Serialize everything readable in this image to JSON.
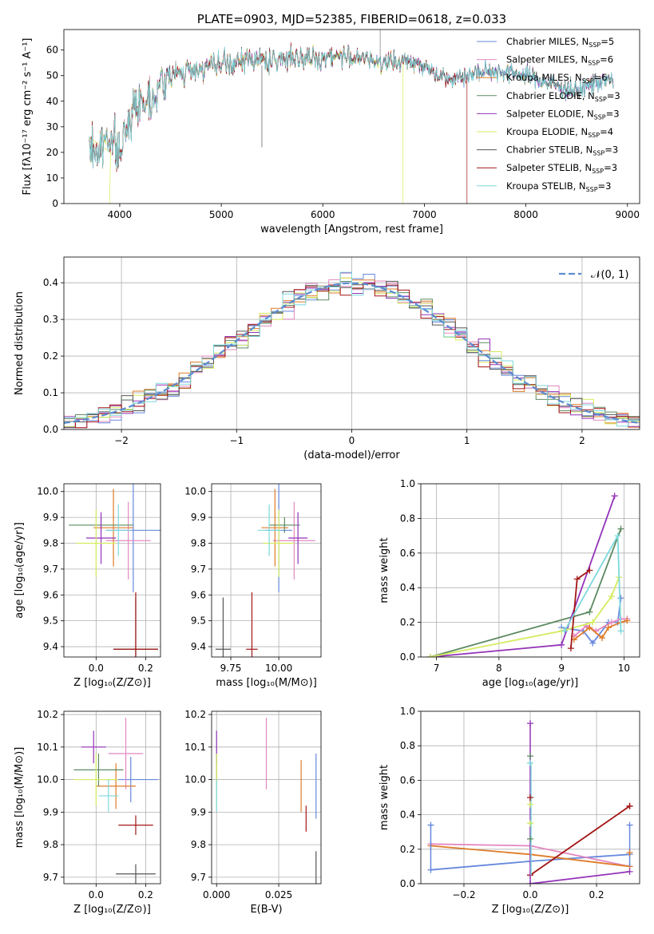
{
  "colors": {
    "Chabrier MILES": "#6689dd",
    "Salpeter MILES": "#e388c1",
    "Kroupa MILES": "#de7b28",
    "Chabrier ELODIE": "#5c8a62",
    "Salpeter ELODIE": "#9333b8",
    "Kroupa ELODIE": "#d4ec5e",
    "Chabrier STELIB": "#555555",
    "Salpeter STELIB": "#a31616",
    "Kroupa STELIB": "#7ed8dc",
    "gaussian": "#5b8bd0"
  },
  "chart_data": [
    {
      "id": "spectrum",
      "type": "line",
      "title": "PLATE=0903, MJD=52385, FIBERID=0618, z=0.033",
      "xlabel": "wavelength [Angstrom, rest frame]",
      "ylabel": "Flux [fλ10⁻¹⁷ erg cm⁻² s⁻¹ A⁻¹]",
      "xlim": [
        3450,
        9120
      ],
      "ylim": [
        0,
        68
      ],
      "xticks": [
        "4000",
        "5000",
        "6000",
        "7000",
        "8000",
        "9000"
      ],
      "yticks": [
        "0",
        "10",
        "20",
        "30",
        "40",
        "50",
        "60"
      ],
      "legend": [
        {
          "name": "Chabrier MILES",
          "nssp": "5"
        },
        {
          "name": "Salpeter MILES",
          "nssp": "6"
        },
        {
          "name": "Kroupa MILES",
          "nssp": "6"
        },
        {
          "name": "Chabrier ELODIE",
          "nssp": "3"
        },
        {
          "name": "Salpeter ELODIE",
          "nssp": "3"
        },
        {
          "name": "Kroupa ELODIE",
          "nssp": "4"
        },
        {
          "name": "Chabrier STELIB",
          "nssp": "3"
        },
        {
          "name": "Salpeter STELIB",
          "nssp": "3"
        },
        {
          "name": "Kroupa STELIB",
          "nssp": "3"
        }
      ],
      "legend_position": "upper right",
      "continuum": {
        "x": [
          3700,
          3800,
          3900,
          4000,
          4100,
          4200,
          4300,
          4400,
          4500,
          4700,
          4900,
          5100,
          5300,
          5500,
          5700,
          5900,
          6100,
          6300,
          6500,
          6700,
          6900,
          7100,
          7300,
          7500,
          7700,
          7900,
          8100,
          8300,
          8500,
          8700,
          8860
        ],
        "y": [
          22,
          20,
          28,
          18,
          35,
          40,
          41,
          46,
          50,
          52,
          54,
          54,
          57,
          55,
          58,
          56,
          58,
          57,
          56,
          55,
          56,
          51,
          49,
          51,
          52,
          51,
          49,
          46,
          44,
          48,
          48
        ]
      },
      "spectrum_range": [
        3700,
        8860
      ]
    },
    {
      "id": "residuals",
      "type": "histogram",
      "xlabel": "(data-model)/error",
      "ylabel": "Normed distribution",
      "xlim": [
        -2.5,
        2.5
      ],
      "ylim": [
        0,
        0.47
      ],
      "xticks": [
        "−2",
        "−1",
        "0",
        "1",
        "2"
      ],
      "yticks": [
        "0.0",
        "0.1",
        "0.2",
        "0.3",
        "0.4"
      ],
      "bin_width": 0.1,
      "legend": [
        "𝒩(0, 1)"
      ],
      "legend_position": "upper right",
      "grid": true
    },
    {
      "id": "age-vs-Z",
      "type": "scatter",
      "xlabel": "Z [log₁₀(Z/Z⊙)]",
      "ylabel": "age  [log₁₀(age/yr)]",
      "xlim": [
        -0.13,
        0.26
      ],
      "ylim": [
        9.36,
        10.03
      ],
      "xticks": [
        "0.0",
        "0.2"
      ],
      "yticks": [
        "9.4",
        "9.5",
        "9.6",
        "9.7",
        "9.8",
        "9.9",
        "10.0"
      ],
      "points": [
        {
          "series": "Chabrier MILES",
          "x": 0.15,
          "xerr": 0.11,
          "y": 9.85,
          "yerr": 0.24
        },
        {
          "series": "Salpeter MILES",
          "x": 0.13,
          "xerr": 0.09,
          "y": 9.81,
          "yerr": 0.15
        },
        {
          "series": "Kroupa MILES",
          "x": 0.07,
          "xerr": 0.08,
          "y": 9.86,
          "yerr": 0.15
        },
        {
          "series": "Chabrier ELODIE",
          "x": 0.02,
          "xerr": 0.13,
          "y": 9.87,
          "yerr": 0.03
        },
        {
          "series": "Salpeter ELODIE",
          "x": 0.02,
          "xerr": 0.06,
          "y": 9.82,
          "yerr": 0.1
        },
        {
          "series": "Kroupa ELODIE",
          "x": 0.0,
          "xerr": 0.08,
          "y": 9.8,
          "yerr": 0.13
        },
        {
          "series": "Chabrier STELIB",
          "x": 0.16,
          "xerr": 0.09,
          "y": 9.39,
          "yerr": 0.2
        },
        {
          "series": "Salpeter STELIB",
          "x": 0.16,
          "xerr": 0.09,
          "y": 9.39,
          "yerr": 0.22
        },
        {
          "series": "Kroupa STELIB",
          "x": 0.09,
          "xerr": 0.05,
          "y": 9.85,
          "yerr": 0.1
        }
      ]
    },
    {
      "id": "age-vs-mass",
      "type": "scatter",
      "xlabel": "mass [log₁₀(M/M⊙)]",
      "xlim": [
        9.65,
        10.22
      ],
      "ylim": [
        9.36,
        10.03
      ],
      "xticks": [
        "9.75",
        "10.00"
      ],
      "yticks": [
        "9.4",
        "9.5",
        "9.6",
        "9.7",
        "9.8",
        "9.9",
        "10.0"
      ],
      "points": [
        {
          "series": "Chabrier MILES",
          "x": 10.0,
          "xerr": 0.07,
          "y": 9.85,
          "yerr": 0.24
        },
        {
          "series": "Salpeter MILES",
          "x": 10.08,
          "xerr": 0.11,
          "y": 9.81,
          "yerr": 0.15
        },
        {
          "series": "Kroupa MILES",
          "x": 9.98,
          "xerr": 0.07,
          "y": 9.86,
          "yerr": 0.15
        },
        {
          "series": "Chabrier ELODIE",
          "x": 10.03,
          "xerr": 0.08,
          "y": 9.87,
          "yerr": 0.03
        },
        {
          "series": "Salpeter ELODIE",
          "x": 10.1,
          "xerr": 0.05,
          "y": 9.82,
          "yerr": 0.1
        },
        {
          "series": "Kroupa ELODIE",
          "x": 10.0,
          "xerr": 0.08,
          "y": 9.8,
          "yerr": 0.13
        },
        {
          "series": "Chabrier STELIB",
          "x": 9.71,
          "xerr": 0.04,
          "y": 9.39,
          "yerr": 0.2
        },
        {
          "series": "Salpeter STELIB",
          "x": 9.86,
          "xerr": 0.03,
          "y": 9.39,
          "yerr": 0.22
        },
        {
          "series": "Kroupa STELIB",
          "x": 9.95,
          "xerr": 0.06,
          "y": 9.85,
          "yerr": 0.1
        }
      ]
    },
    {
      "id": "massweight-vs-age",
      "type": "line",
      "xlabel": "age  [log₁₀(age/yr)]",
      "ylabel": "mass weight",
      "xlim": [
        6.75,
        10.25
      ],
      "ylim": [
        0,
        1
      ],
      "xticks": [
        "7",
        "8",
        "9",
        "10"
      ],
      "yticks": [
        "0.0",
        "0.2",
        "0.4",
        "0.6",
        "0.8",
        "1.0"
      ],
      "series": [
        {
          "name": "Chabrier MILES",
          "x": [
            9.0,
            9.35,
            9.5,
            9.75,
            9.9,
            9.95
          ],
          "y": [
            0.17,
            0.15,
            0.08,
            0.2,
            0.2,
            0.34
          ]
        },
        {
          "name": "Salpeter MILES",
          "x": [
            9.2,
            9.4,
            9.55,
            9.8,
            9.95,
            10.05
          ],
          "y": [
            0.12,
            0.18,
            0.15,
            0.2,
            0.22,
            0.22
          ]
        },
        {
          "name": "Kroupa MILES",
          "x": [
            9.2,
            9.45,
            9.65,
            9.75,
            9.95,
            10.05
          ],
          "y": [
            0.1,
            0.17,
            0.11,
            0.17,
            0.2,
            0.21
          ]
        },
        {
          "name": "Chabrier ELODIE",
          "x": [
            6.9,
            9.45,
            9.95
          ],
          "y": [
            0.0,
            0.26,
            0.74
          ]
        },
        {
          "name": "Salpeter ELODIE",
          "x": [
            6.9,
            9.0,
            9.85
          ],
          "y": [
            0.0,
            0.07,
            0.93
          ]
        },
        {
          "name": "Kroupa ELODIE",
          "x": [
            6.9,
            9.0,
            9.5,
            9.8,
            9.92
          ],
          "y": [
            0.0,
            0.15,
            0.2,
            0.35,
            0.46
          ]
        },
        {
          "name": "Salpeter STELIB",
          "x": [
            9.15,
            9.25,
            9.45
          ],
          "y": [
            0.05,
            0.45,
            0.5
          ]
        },
        {
          "name": "Kroupa STELIB",
          "x": [
            9.05,
            9.9,
            9.95
          ],
          "y": [
            0.15,
            0.7,
            0.15
          ]
        }
      ]
    },
    {
      "id": "mass-vs-Z",
      "type": "scatter",
      "xlabel": "Z [log₁₀(Z/Z⊙)]",
      "ylabel": "mass [log₁₀(M/M⊙)]",
      "xlim": [
        -0.13,
        0.26
      ],
      "ylim": [
        9.68,
        10.21
      ],
      "xticks": [
        "0.0",
        "0.2"
      ],
      "yticks": [
        "9.7",
        "9.8",
        "9.9",
        "10.0",
        "10.1",
        "10.2"
      ],
      "points": [
        {
          "series": "Chabrier MILES",
          "x": 0.14,
          "xerr": 0.11,
          "y": 10.0,
          "yerr": 0.07
        },
        {
          "series": "Salpeter MILES",
          "x": 0.12,
          "xerr": 0.07,
          "y": 10.08,
          "yerr": 0.11
        },
        {
          "series": "Kroupa MILES",
          "x": 0.08,
          "xerr": 0.08,
          "y": 9.98,
          "yerr": 0.07
        },
        {
          "series": "Chabrier ELODIE",
          "x": 0.01,
          "xerr": 0.1,
          "y": 10.03,
          "yerr": 0.05
        },
        {
          "series": "Salpeter ELODIE",
          "x": -0.01,
          "xerr": 0.05,
          "y": 10.1,
          "yerr": 0.05
        },
        {
          "series": "Kroupa ELODIE",
          "x": 0.0,
          "xerr": 0.09,
          "y": 10.0,
          "yerr": 0.08
        },
        {
          "series": "Chabrier STELIB",
          "x": 0.16,
          "xerr": 0.08,
          "y": 9.71,
          "yerr": 0.03
        },
        {
          "series": "Salpeter STELIB",
          "x": 0.16,
          "xerr": 0.07,
          "y": 9.86,
          "yerr": 0.03
        },
        {
          "series": "Kroupa STELIB",
          "x": 0.05,
          "xerr": 0.04,
          "y": 9.95,
          "yerr": 0.05
        }
      ]
    },
    {
      "id": "mass-vs-EBV",
      "type": "scatter",
      "xlabel": "E(B-V)",
      "xlim": [
        -0.002,
        0.042
      ],
      "ylim": [
        9.68,
        10.21
      ],
      "xticks": [
        "0.000",
        "0.025"
      ],
      "yticks": [
        "9.7",
        "9.8",
        "9.9",
        "10.0",
        "10.1",
        "10.2"
      ],
      "points": [
        {
          "series": "Chabrier MILES",
          "x": 0.04,
          "xerr": 0.0,
          "y": 9.98,
          "yerr": 0.1
        },
        {
          "series": "Salpeter MILES",
          "x": 0.02,
          "xerr": 0.0,
          "y": 10.08,
          "yerr": 0.11
        },
        {
          "series": "Kroupa MILES",
          "x": 0.034,
          "xerr": 0.0,
          "y": 9.98,
          "yerr": 0.08
        },
        {
          "series": "Chabrier ELODIE",
          "x": 0.0,
          "xerr": 0.0,
          "y": 10.03,
          "yerr": 0.05
        },
        {
          "series": "Salpeter ELODIE",
          "x": 0.0,
          "xerr": 0.0,
          "y": 10.1,
          "yerr": 0.05
        },
        {
          "series": "Kroupa ELODIE",
          "x": 0.0,
          "xerr": 0.0,
          "y": 10.0,
          "yerr": 0.08
        },
        {
          "series": "Chabrier STELIB",
          "x": 0.04,
          "xerr": 0.0,
          "y": 9.73,
          "yerr": 0.05
        },
        {
          "series": "Salpeter STELIB",
          "x": 0.036,
          "xerr": 0.0,
          "y": 9.88,
          "yerr": 0.04
        },
        {
          "series": "Kroupa STELIB",
          "x": 0.0,
          "xerr": 0.0,
          "y": 9.95,
          "yerr": 0.05
        }
      ]
    },
    {
      "id": "massweight-vs-Z",
      "type": "line",
      "xlabel": "Z [log₁₀(Z/Z⊙)]",
      "ylabel": "mass weight",
      "xlim": [
        -0.33,
        0.33
      ],
      "ylim": [
        0,
        1
      ],
      "xticks": [
        "−0.2",
        "0.0",
        "0.2"
      ],
      "yticks": [
        "0.0",
        "0.2",
        "0.4",
        "0.6",
        "0.8",
        "1.0"
      ],
      "series": [
        {
          "name": "Chabrier MILES",
          "x": [
            -0.3,
            0.0,
            0.3
          ],
          "y": [
            0.08,
            0.13,
            0.17
          ]
        },
        {
          "name": "Salpeter MILES",
          "x": [
            -0.3,
            0.0,
            0.3
          ],
          "y": [
            0.23,
            0.22,
            0.1
          ]
        },
        {
          "name": "Kroupa MILES",
          "x": [
            -0.3,
            0.0,
            0.3
          ],
          "y": [
            0.22,
            0.17,
            0.1
          ]
        },
        {
          "name": "Salpeter ELODIE",
          "x": [
            0.0,
            0.3
          ],
          "y": [
            0.0,
            0.07
          ]
        },
        {
          "name": "Salpeter STELIB",
          "x": [
            0.0,
            0.3
          ],
          "y": [
            0.05,
            0.45
          ]
        }
      ],
      "vertical_markers": [
        {
          "series": "Salpeter ELODIE",
          "x": 0.0,
          "y": 0.93
        },
        {
          "series": "Chabrier ELODIE",
          "x": 0.0,
          "y": 0.74
        },
        {
          "series": "Kroupa STELIB",
          "x": 0.0,
          "y": 0.7
        },
        {
          "series": "Salpeter STELIB",
          "x": 0.0,
          "y": 0.5
        },
        {
          "series": "Kroupa ELODIE",
          "x": 0.0,
          "y": 0.46
        },
        {
          "series": "Kroupa ELODIE",
          "x": 0.0,
          "y": 0.35
        },
        {
          "series": "Chabrier ELODIE",
          "x": 0.0,
          "y": 0.26
        },
        {
          "series": "Chabrier MILES",
          "x": -0.3,
          "y": 0.34
        },
        {
          "series": "Chabrier MILES",
          "x": 0.3,
          "y": 0.34
        },
        {
          "series": "Salpeter STELIB",
          "x": 0.3,
          "y": 0.45
        },
        {
          "series": "Kroupa MILES",
          "x": 0.3,
          "y": 0.18
        }
      ]
    }
  ]
}
